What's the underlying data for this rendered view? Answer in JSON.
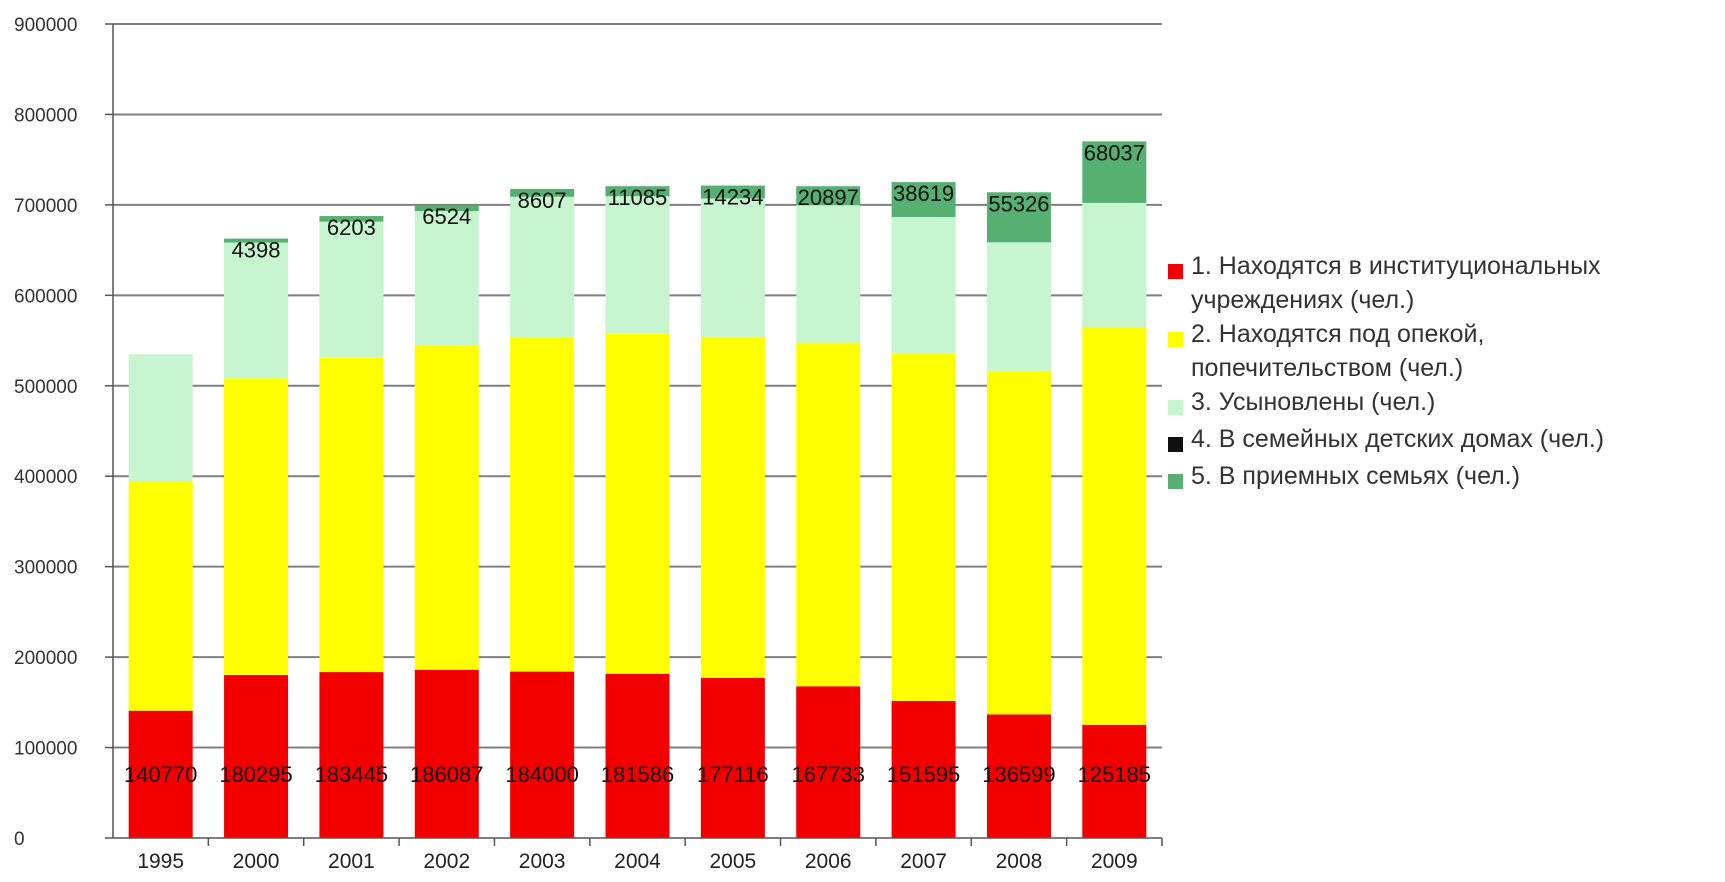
{
  "chart_data": {
    "type": "bar",
    "stacked": true,
    "title": "",
    "xlabel": "",
    "ylabel": "",
    "ylim": [
      0,
      900000
    ],
    "yticks": [
      "0",
      "100000",
      "200000",
      "300000",
      "400000",
      "500000",
      "600000",
      "700000",
      "800000",
      "900000"
    ],
    "grid": true,
    "legend_position": "right",
    "categories": [
      "1995",
      "2000",
      "2001",
      "2002",
      "2003",
      "2004",
      "2005",
      "2006",
      "2007",
      "2008",
      "2009"
    ],
    "series": [
      {
        "name": "1. Находятся в институциональных учреждениях (чел.)",
        "legend_lines": [
          "1. Находятся в институциональных",
          "учреждениях (чел.)"
        ],
        "color": "#f20000",
        "values": [
          140770,
          180295,
          183445,
          186087,
          184000,
          181586,
          177116,
          167733,
          151595,
          136599,
          125185
        ],
        "labels": [
          "140770",
          "180295",
          "183445",
          "186087",
          "184000",
          "181586",
          "177116",
          "167733",
          "151595",
          "136599",
          "125185"
        ]
      },
      {
        "name": "2. Находятся под опекой, попечительством (чел.)",
        "legend_lines": [
          "2. Находятся под опекой,",
          "попечительством (чел.)"
        ],
        "color": "#ffff00",
        "values": [
          254000,
          328000,
          348000,
          358000,
          370000,
          376000,
          377000,
          380000,
          384000,
          380000,
          440000
        ],
        "labels": []
      },
      {
        "name": "3. Усыновлены (чел.)",
        "legend_lines": [
          "3. Усыновлены (чел.)"
        ],
        "color": "#c6f5cf",
        "values": [
          140000,
          150000,
          150000,
          149000,
          155000,
          152000,
          153000,
          152000,
          151000,
          142000,
          137000
        ],
        "labels": []
      },
      {
        "name": "4. В семейных детских домах (чел.)",
        "legend_lines": [
          "4. В семейных детских домах (чел.)"
        ],
        "color": "#111111",
        "values": [
          0,
          0,
          0,
          0,
          0,
          0,
          0,
          0,
          0,
          0,
          0
        ],
        "labels": []
      },
      {
        "name": "5. В приемных семьях (чел.)",
        "legend_lines": [
          "5. В приемных семьях (чел.)"
        ],
        "color": "#55b071",
        "values": [
          0,
          4398,
          6203,
          6524,
          8607,
          11085,
          14234,
          20897,
          38619,
          55326,
          68037
        ],
        "labels": [
          "",
          "4398",
          "6203",
          "6524",
          "8607",
          "11085",
          "14234",
          "20897",
          "38619",
          "55326",
          "68037"
        ]
      }
    ]
  }
}
